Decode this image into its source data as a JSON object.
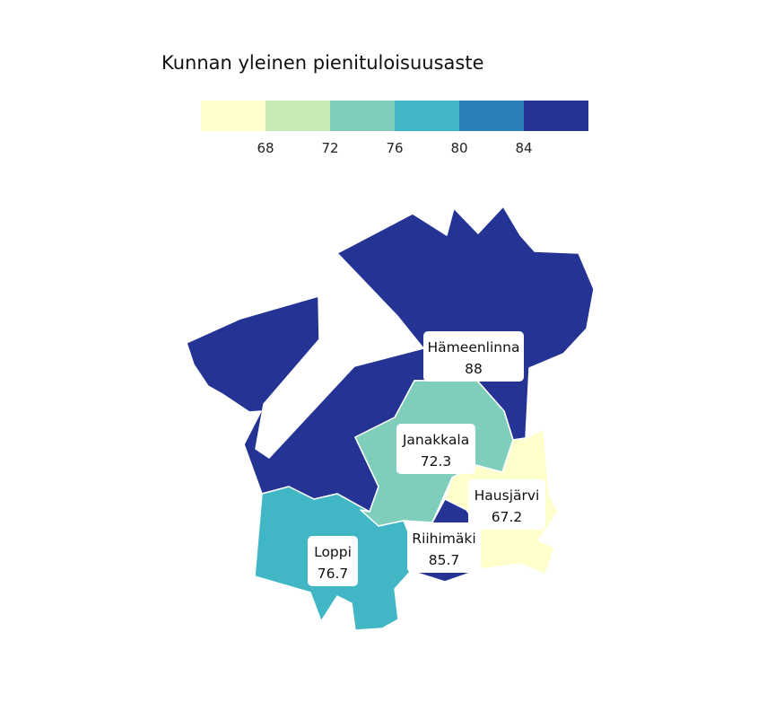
{
  "legend": {
    "title": "Kunnan yleinen pienituloisuusaste",
    "breaks": [
      "68",
      "72",
      "76",
      "80",
      "84"
    ],
    "colors": [
      "#ffffcc",
      "#c7e9b4",
      "#7fcdbb",
      "#41b6c4",
      "#2c7fb8",
      "#253494"
    ]
  },
  "municipalities": [
    {
      "id": "hameenlinna",
      "name": "Hämeenlinna",
      "value_label": "88",
      "value": 88,
      "color": "#253494"
    },
    {
      "id": "janakkala",
      "name": "Janakkala",
      "value_label": "72.3",
      "value": 72.3,
      "color": "#7fcdbb"
    },
    {
      "id": "hausjarvi",
      "name": "Hausjärvi",
      "value_label": "67.2",
      "value": 67.2,
      "color": "#ffffcc"
    },
    {
      "id": "riihimaki",
      "name": "Riihimäki",
      "value_label": "85.7",
      "value": 85.7,
      "color": "#253494"
    },
    {
      "id": "loppi",
      "name": "Loppi",
      "value_label": "76.7",
      "value": 76.7,
      "color": "#41b6c4"
    }
  ]
}
